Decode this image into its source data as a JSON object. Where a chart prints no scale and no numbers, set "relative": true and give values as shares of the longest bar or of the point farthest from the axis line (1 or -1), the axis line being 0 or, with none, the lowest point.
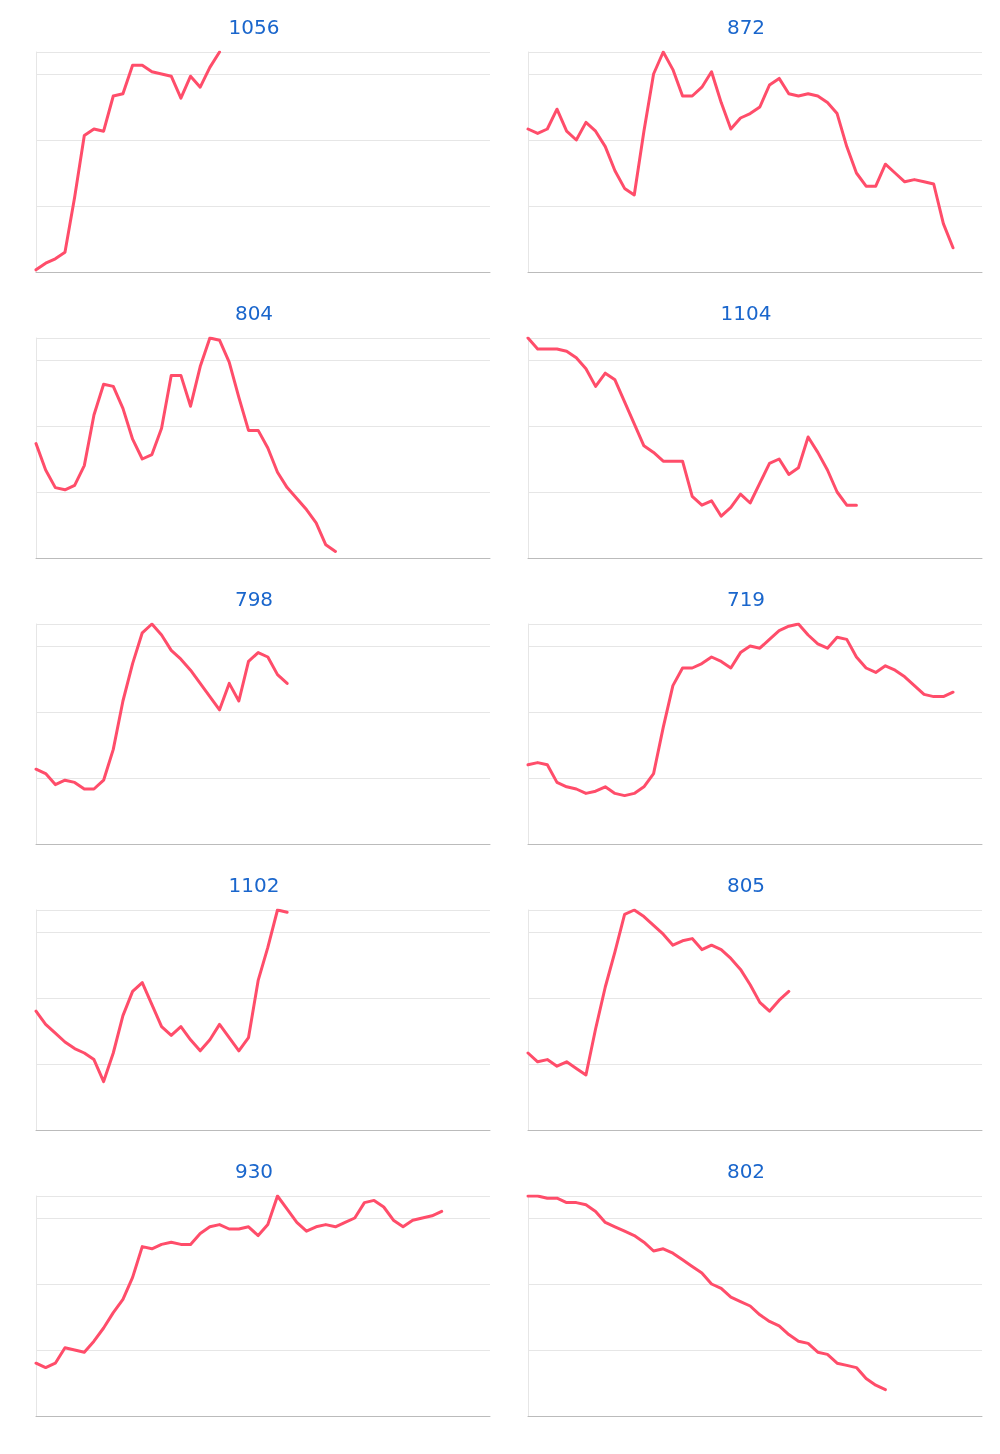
{
  "chart_data": [
    {
      "type": "line",
      "title": "1056",
      "relative": true,
      "grid": "y",
      "marker": "none",
      "color": "#ff4d6a",
      "categories": [
        null,
        null,
        null,
        null,
        null,
        null,
        null,
        null,
        null,
        null,
        null,
        null,
        null,
        null,
        null,
        null,
        null,
        null,
        null,
        null,
        null,
        null,
        null,
        null,
        null,
        null,
        null,
        null,
        null,
        null,
        null,
        null,
        null,
        null,
        null,
        null,
        null,
        null,
        null,
        null,
        null,
        null,
        null,
        null,
        null,
        null,
        null,
        null
      ],
      "values": [
        0.01,
        0.04,
        0.06,
        0.09,
        0.34,
        0.62,
        0.65,
        0.64,
        0.8,
        0.81,
        0.94,
        0.94,
        0.91,
        0.9,
        0.89,
        0.79,
        0.89,
        0.84,
        0.93,
        1.0,
        null,
        null,
        null,
        null,
        null,
        null,
        null,
        null,
        null,
        null,
        null,
        null,
        null,
        null,
        null,
        null,
        null,
        null,
        null,
        null,
        null,
        null,
        null,
        null,
        null,
        null,
        null,
        null
      ]
    },
    {
      "type": "line",
      "title": "872",
      "relative": true,
      "grid": "y",
      "marker": "none",
      "color": "#ff4d6a",
      "categories": [
        null,
        null,
        null,
        null,
        null,
        null,
        null,
        null,
        null,
        null,
        null,
        null,
        null,
        null,
        null,
        null,
        null,
        null,
        null,
        null,
        null,
        null,
        null,
        null,
        null,
        null,
        null,
        null,
        null,
        null,
        null,
        null,
        null,
        null,
        null,
        null,
        null,
        null,
        null,
        null,
        null,
        null,
        null,
        null,
        null,
        null,
        null,
        null
      ],
      "values": [
        0.65,
        0.63,
        0.65,
        0.74,
        0.64,
        0.6,
        0.68,
        0.64,
        0.57,
        0.46,
        0.38,
        0.35,
        0.64,
        0.9,
        1.0,
        0.92,
        0.8,
        0.8,
        0.84,
        0.91,
        0.77,
        0.65,
        0.7,
        0.72,
        0.75,
        0.85,
        0.88,
        0.81,
        0.8,
        0.81,
        0.8,
        0.77,
        0.72,
        0.57,
        0.45,
        0.39,
        0.39,
        0.49,
        0.45,
        0.41,
        0.42,
        0.41,
        0.4,
        0.22,
        0.11,
        null,
        null,
        null
      ]
    },
    {
      "type": "line",
      "title": "804",
      "relative": true,
      "grid": "y",
      "marker": "none",
      "color": "#ff4d6a",
      "categories": [
        null,
        null,
        null,
        null,
        null,
        null,
        null,
        null,
        null,
        null,
        null,
        null,
        null,
        null,
        null,
        null,
        null,
        null,
        null,
        null,
        null,
        null,
        null,
        null,
        null,
        null,
        null,
        null,
        null,
        null,
        null,
        null,
        null,
        null,
        null,
        null,
        null,
        null,
        null,
        null,
        null,
        null,
        null,
        null,
        null,
        null,
        null,
        null
      ],
      "values": [
        0.52,
        0.4,
        0.32,
        0.31,
        0.33,
        0.42,
        0.65,
        0.79,
        0.78,
        0.68,
        0.54,
        0.45,
        0.47,
        0.59,
        0.83,
        0.83,
        0.69,
        0.87,
        1.0,
        0.99,
        0.89,
        0.73,
        0.58,
        0.58,
        0.5,
        0.39,
        0.32,
        0.27,
        0.22,
        0.16,
        0.06,
        0.03,
        null,
        null,
        null,
        null,
        null,
        null,
        null,
        null,
        null,
        null,
        null,
        null,
        null,
        null,
        null,
        null
      ]
    },
    {
      "type": "line",
      "title": "1104",
      "relative": true,
      "grid": "y",
      "marker": "none",
      "color": "#ff4d6a",
      "categories": [
        null,
        null,
        null,
        null,
        null,
        null,
        null,
        null,
        null,
        null,
        null,
        null,
        null,
        null,
        null,
        null,
        null,
        null,
        null,
        null,
        null,
        null,
        null,
        null,
        null,
        null,
        null,
        null,
        null,
        null,
        null,
        null,
        null,
        null,
        null,
        null,
        null,
        null,
        null,
        null,
        null,
        null,
        null,
        null,
        null,
        null,
        null,
        null
      ],
      "values": [
        1.0,
        0.95,
        0.95,
        0.95,
        0.94,
        0.91,
        0.86,
        0.78,
        0.84,
        0.81,
        0.71,
        0.61,
        0.51,
        0.48,
        0.44,
        0.44,
        0.44,
        0.28,
        0.24,
        0.26,
        0.19,
        0.23,
        0.29,
        0.25,
        0.34,
        0.43,
        0.45,
        0.38,
        0.41,
        0.55,
        0.48,
        0.4,
        0.3,
        0.24,
        0.24,
        null,
        null,
        null,
        null,
        null,
        null,
        null,
        null,
        null,
        null,
        null,
        null,
        null
      ]
    },
    {
      "type": "line",
      "title": "798",
      "relative": true,
      "grid": "y",
      "marker": "none",
      "color": "#ff4d6a",
      "categories": [
        null,
        null,
        null,
        null,
        null,
        null,
        null,
        null,
        null,
        null,
        null,
        null,
        null,
        null,
        null,
        null,
        null,
        null,
        null,
        null,
        null,
        null,
        null,
        null,
        null,
        null,
        null,
        null,
        null,
        null,
        null,
        null,
        null,
        null,
        null,
        null,
        null,
        null,
        null,
        null,
        null,
        null,
        null,
        null,
        null,
        null,
        null,
        null
      ],
      "values": [
        0.34,
        0.32,
        0.27,
        0.29,
        0.28,
        0.25,
        0.25,
        0.29,
        0.43,
        0.65,
        0.82,
        0.96,
        1.0,
        0.95,
        0.88,
        0.84,
        0.79,
        0.73,
        0.67,
        0.61,
        0.73,
        0.65,
        0.83,
        0.87,
        0.85,
        0.77,
        0.73,
        null,
        null,
        null,
        null,
        null,
        null,
        null,
        null,
        null,
        null,
        null,
        null,
        null,
        null,
        null,
        null,
        null,
        null,
        null,
        null,
        null
      ]
    },
    {
      "type": "line",
      "title": "719",
      "relative": true,
      "grid": "y",
      "marker": "none",
      "color": "#ff4d6a",
      "categories": [
        null,
        null,
        null,
        null,
        null,
        null,
        null,
        null,
        null,
        null,
        null,
        null,
        null,
        null,
        null,
        null,
        null,
        null,
        null,
        null,
        null,
        null,
        null,
        null,
        null,
        null,
        null,
        null,
        null,
        null,
        null,
        null,
        null,
        null,
        null,
        null,
        null,
        null,
        null,
        null,
        null,
        null,
        null,
        null,
        null,
        null,
        null,
        null
      ],
      "values": [
        0.36,
        0.37,
        0.36,
        0.28,
        0.26,
        0.25,
        0.23,
        0.24,
        0.26,
        0.23,
        0.22,
        0.23,
        0.26,
        0.32,
        0.53,
        0.72,
        0.8,
        0.8,
        0.82,
        0.85,
        0.83,
        0.8,
        0.87,
        0.9,
        0.89,
        0.93,
        0.97,
        0.99,
        1.0,
        0.95,
        0.91,
        0.89,
        0.94,
        0.93,
        0.85,
        0.8,
        0.78,
        0.81,
        0.79,
        0.76,
        0.72,
        0.68,
        0.67,
        0.67,
        0.69,
        null,
        null,
        null
      ]
    },
    {
      "type": "line",
      "title": "1102",
      "relative": true,
      "grid": "y",
      "marker": "none",
      "color": "#ff4d6a",
      "categories": [
        null,
        null,
        null,
        null,
        null,
        null,
        null,
        null,
        null,
        null,
        null,
        null,
        null,
        null,
        null,
        null,
        null,
        null,
        null,
        null,
        null,
        null,
        null,
        null,
        null,
        null,
        null,
        null,
        null,
        null,
        null,
        null,
        null,
        null,
        null,
        null,
        null,
        null,
        null,
        null,
        null,
        null,
        null,
        null,
        null,
        null,
        null,
        null
      ],
      "values": [
        0.54,
        0.48,
        0.44,
        0.4,
        0.37,
        0.35,
        0.32,
        0.22,
        0.35,
        0.52,
        0.63,
        0.67,
        0.57,
        0.47,
        0.43,
        0.47,
        0.41,
        0.36,
        0.41,
        0.48,
        0.42,
        0.36,
        0.42,
        0.68,
        0.83,
        1.0,
        0.99,
        null,
        null,
        null,
        null,
        null,
        null,
        null,
        null,
        null,
        null,
        null,
        null,
        null,
        null,
        null,
        null,
        null,
        null,
        null,
        null,
        null
      ]
    },
    {
      "type": "line",
      "title": "805",
      "relative": true,
      "grid": "y",
      "marker": "none",
      "color": "#ff4d6a",
      "categories": [
        null,
        null,
        null,
        null,
        null,
        null,
        null,
        null,
        null,
        null,
        null,
        null,
        null,
        null,
        null,
        null,
        null,
        null,
        null,
        null,
        null,
        null,
        null,
        null,
        null,
        null,
        null,
        null,
        null,
        null,
        null,
        null,
        null,
        null,
        null,
        null,
        null,
        null,
        null,
        null,
        null,
        null,
        null,
        null,
        null,
        null,
        null,
        null
      ],
      "values": [
        0.35,
        0.31,
        0.32,
        0.29,
        0.31,
        0.28,
        0.25,
        0.46,
        0.65,
        0.81,
        0.98,
        1.0,
        0.97,
        0.93,
        0.89,
        0.84,
        0.86,
        0.87,
        0.82,
        0.84,
        0.82,
        0.78,
        0.73,
        0.66,
        0.58,
        0.54,
        0.59,
        0.63,
        null,
        null,
        null,
        null,
        null,
        null,
        null,
        null,
        null,
        null,
        null,
        null,
        null,
        null,
        null,
        null,
        null,
        null,
        null,
        null
      ]
    },
    {
      "type": "line",
      "title": "930",
      "relative": true,
      "grid": "y",
      "marker": "none",
      "color": "#ff4d6a",
      "categories": [
        null,
        null,
        null,
        null,
        null,
        null,
        null,
        null,
        null,
        null,
        null,
        null,
        null,
        null,
        null,
        null,
        null,
        null,
        null,
        null,
        null,
        null,
        null,
        null,
        null,
        null,
        null,
        null,
        null,
        null,
        null,
        null,
        null,
        null,
        null,
        null,
        null,
        null,
        null,
        null,
        null,
        null,
        null,
        null,
        null,
        null,
        null,
        null
      ],
      "values": [
        0.24,
        0.22,
        0.24,
        0.31,
        0.3,
        0.29,
        0.34,
        0.4,
        0.47,
        0.53,
        0.63,
        0.77,
        0.76,
        0.78,
        0.79,
        0.78,
        0.78,
        0.83,
        0.86,
        0.87,
        0.85,
        0.85,
        0.86,
        0.82,
        0.87,
        1.0,
        0.94,
        0.88,
        0.84,
        0.86,
        0.87,
        0.86,
        0.88,
        0.9,
        0.97,
        0.98,
        0.95,
        0.89,
        0.86,
        0.89,
        0.9,
        0.91,
        0.93,
        null,
        null,
        null,
        null,
        null
      ]
    },
    {
      "type": "line",
      "title": "802",
      "relative": true,
      "grid": "y",
      "marker": "none",
      "color": "#ff4d6a",
      "categories": [
        null,
        null,
        null,
        null,
        null,
        null,
        null,
        null,
        null,
        null,
        null,
        null,
        null,
        null,
        null,
        null,
        null,
        null,
        null,
        null,
        null,
        null,
        null,
        null,
        null,
        null,
        null,
        null,
        null,
        null,
        null,
        null,
        null,
        null,
        null,
        null,
        null,
        null,
        null,
        null,
        null,
        null,
        null,
        null,
        null,
        null,
        null,
        null
      ],
      "values": [
        1.0,
        1.0,
        0.99,
        0.99,
        0.97,
        0.97,
        0.96,
        0.93,
        0.88,
        0.86,
        0.84,
        0.82,
        0.79,
        0.75,
        0.76,
        0.74,
        0.71,
        0.68,
        0.65,
        0.6,
        0.58,
        0.54,
        0.52,
        0.5,
        0.46,
        0.43,
        0.41,
        0.37,
        0.34,
        0.33,
        0.29,
        0.28,
        0.24,
        0.23,
        0.22,
        0.17,
        0.14,
        0.12,
        null,
        null,
        null,
        null,
        null,
        null,
        null,
        null,
        null,
        null
      ]
    }
  ]
}
